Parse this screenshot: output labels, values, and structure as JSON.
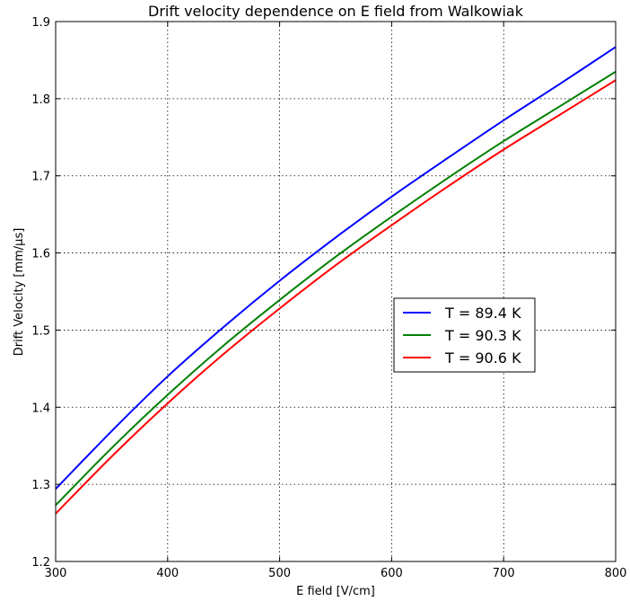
{
  "chart_data": {
    "type": "line",
    "title": "Drift velocity dependence on E field from Walkowiak",
    "xlabel": "E field [V/cm]",
    "ylabel": "Drift Velocity [mm/μs]",
    "xlim": [
      300,
      800
    ],
    "ylim": [
      1.2,
      1.9
    ],
    "xticks": [
      "300",
      "400",
      "500",
      "600",
      "700",
      "800"
    ],
    "yticks": [
      "1.2",
      "1.3",
      "1.4",
      "1.5",
      "1.6",
      "1.7",
      "1.8",
      "1.9"
    ],
    "grid": true,
    "legend_position": "center-right",
    "x": [
      300,
      350,
      400,
      450,
      500,
      550,
      600,
      650,
      700,
      750,
      800
    ],
    "series": [
      {
        "name": "T = 89.4 K",
        "color": "#0000ff",
        "values": [
          1.294,
          1.369,
          1.44,
          1.504,
          1.564,
          1.62,
          1.673,
          1.723,
          1.772,
          1.819,
          1.867
        ]
      },
      {
        "name": "T = 90.3 K",
        "color": "#008000",
        "values": [
          1.273,
          1.347,
          1.416,
          1.48,
          1.539,
          1.595,
          1.647,
          1.697,
          1.745,
          1.79,
          1.835
        ]
      },
      {
        "name": "T = 90.6 K",
        "color": "#ff0000",
        "values": [
          1.262,
          1.336,
          1.405,
          1.469,
          1.528,
          1.584,
          1.636,
          1.686,
          1.734,
          1.779,
          1.824
        ]
      }
    ]
  }
}
